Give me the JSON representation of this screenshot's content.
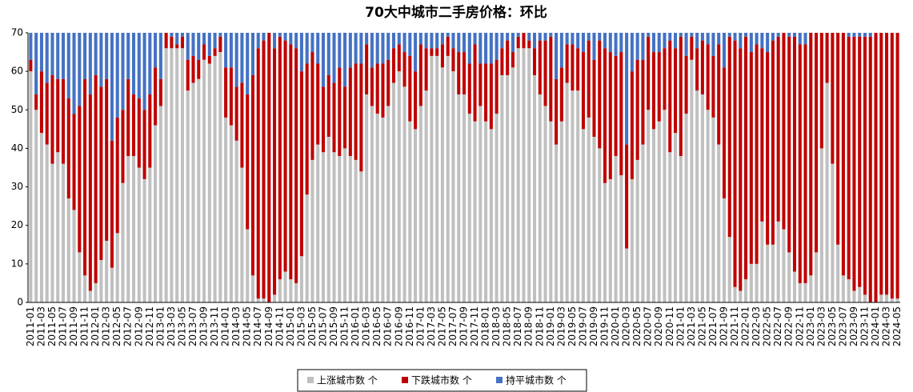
{
  "chart_data": {
    "type": "stacked_bar",
    "title": "70大中城市二手房价格：环比",
    "categories": [
      "2011-01",
      null,
      "2011-03",
      null,
      "2011-05",
      null,
      "2011-07",
      null,
      "2011-09",
      null,
      "2011-11",
      null,
      "2012-01",
      null,
      "2012-03",
      null,
      "2012-05",
      null,
      "2012-07",
      null,
      "2012-09",
      null,
      "2012-11",
      null,
      "2013-01",
      null,
      "2013-03",
      null,
      "2013-05",
      null,
      "2013-07",
      null,
      "2013-09",
      null,
      "2013-11",
      null,
      "2014-01",
      null,
      "2014-03",
      null,
      "2014-05",
      null,
      "2014-07",
      null,
      "2014-09",
      null,
      "2014-11",
      null,
      "2015-01",
      null,
      "2015-03",
      null,
      "2015-05",
      null,
      "2015-07",
      null,
      "2015-09",
      null,
      "2015-11",
      null,
      "2016-01",
      null,
      "2016-03",
      null,
      "2016-05",
      null,
      "2016-07",
      null,
      "2016-09",
      null,
      "2016-11",
      null,
      "2017-01",
      null,
      "2017-03",
      null,
      "2017-05",
      null,
      "2017-07",
      null,
      "2017-09",
      null,
      "2017-11",
      null,
      "2018-01",
      null,
      "2018-03",
      null,
      "2018-05",
      null,
      "2018-07",
      null,
      "2018-09",
      null,
      "2018-11",
      null,
      "2019-01",
      null,
      "2019-03",
      null,
      "2019-05",
      null,
      "2019-07",
      null,
      "2019-09",
      null,
      "2019-11",
      null,
      "2020-01",
      null,
      "2020-03",
      null,
      "2020-05",
      null,
      "2020-07",
      null,
      "2020-09",
      null,
      "2020-11",
      null,
      "2021-01",
      null,
      "2021-03",
      null,
      "2021-05",
      null,
      "2021-07",
      null,
      "2021-09",
      null,
      "2021-11",
      null,
      "2022-01",
      null,
      "2022-03",
      null,
      "2022-05",
      null,
      "2022-07",
      null,
      "2022-09",
      null,
      "2022-11",
      null,
      "2023-01",
      null,
      "2023-03",
      null,
      "2023-05",
      null,
      "2023-07",
      null,
      "2023-09",
      null,
      "2023-11",
      null,
      "2024-01",
      null,
      "2024-03",
      null,
      "2024-05"
    ],
    "series": [
      {
        "name": "上涨城市数 个",
        "color": "#c0c0c0",
        "values": [
          60,
          50,
          44,
          41,
          36,
          39,
          36,
          27,
          24,
          13,
          7,
          3,
          5,
          11,
          16,
          9,
          18,
          31,
          38,
          38,
          35,
          32,
          35,
          46,
          51,
          66,
          66,
          66,
          66,
          55,
          57,
          58,
          63,
          62,
          64,
          65,
          48,
          46,
          42,
          35,
          19,
          7,
          1,
          1,
          0,
          2,
          6,
          8,
          6,
          5,
          12,
          28,
          37,
          41,
          39,
          43,
          39,
          38,
          40,
          38,
          37,
          34,
          54,
          51,
          49,
          48,
          51,
          57,
          60,
          56,
          47,
          45,
          51,
          55,
          64,
          64,
          61,
          64,
          60,
          54,
          54,
          49,
          47,
          51,
          47,
          45,
          49,
          59,
          59,
          61,
          66,
          66,
          66,
          59,
          54,
          51,
          47,
          41,
          47,
          57,
          55,
          55,
          45,
          48,
          43,
          40,
          31,
          32,
          38,
          33,
          14,
          32,
          37,
          41,
          50,
          45,
          47,
          50,
          39,
          44,
          38,
          49,
          63,
          55,
          54,
          50,
          48,
          41,
          27,
          17,
          4,
          3,
          6,
          10,
          10,
          21,
          15,
          15,
          21,
          19,
          13,
          8,
          5,
          5,
          7,
          13,
          40,
          57,
          36,
          15,
          7,
          6,
          3,
          4,
          2,
          0,
          0,
          2,
          2,
          1,
          1
        ]
      },
      {
        "name": "下跌城市数 个",
        "color": "#c00000",
        "values": [
          3,
          4,
          16,
          16,
          23,
          19,
          22,
          26,
          25,
          38,
          51,
          51,
          54,
          45,
          42,
          33,
          30,
          19,
          20,
          16,
          18,
          18,
          19,
          15,
          7,
          4,
          3,
          1,
          3,
          8,
          7,
          5,
          4,
          2,
          2,
          4,
          13,
          15,
          14,
          22,
          35,
          52,
          65,
          67,
          70,
          64,
          63,
          60,
          61,
          61,
          48,
          34,
          28,
          21,
          17,
          16,
          18,
          23,
          16,
          23,
          25,
          28,
          13,
          10,
          13,
          14,
          12,
          9,
          7,
          9,
          17,
          15,
          16,
          11,
          2,
          2,
          6,
          5,
          6,
          11,
          11,
          13,
          20,
          11,
          15,
          17,
          14,
          7,
          9,
          4,
          3,
          4,
          2,
          7,
          14,
          17,
          22,
          17,
          14,
          10,
          12,
          11,
          20,
          20,
          20,
          28,
          35,
          33,
          26,
          32,
          27,
          28,
          26,
          22,
          19,
          20,
          18,
          16,
          29,
          22,
          31,
          15,
          6,
          11,
          14,
          17,
          16,
          26,
          34,
          52,
          64,
          63,
          63,
          55,
          57,
          45,
          50,
          53,
          48,
          51,
          56,
          61,
          62,
          62,
          63,
          57,
          30,
          13,
          34,
          55,
          63,
          63,
          66,
          65,
          67,
          69,
          70,
          68,
          68,
          69,
          69
        ]
      },
      {
        "name": "持平城市数 个",
        "color": "#4472c4",
        "values": [
          7,
          16,
          10,
          13,
          11,
          12,
          12,
          17,
          21,
          19,
          12,
          16,
          11,
          14,
          12,
          28,
          22,
          20,
          12,
          16,
          17,
          20,
          16,
          9,
          12,
          0,
          1,
          3,
          1,
          7,
          6,
          7,
          3,
          6,
          4,
          1,
          9,
          9,
          14,
          13,
          16,
          11,
          4,
          2,
          0,
          4,
          1,
          2,
          3,
          4,
          10,
          8,
          5,
          8,
          14,
          11,
          13,
          9,
          14,
          9,
          8,
          8,
          3,
          9,
          8,
          8,
          7,
          4,
          3,
          5,
          6,
          10,
          3,
          4,
          4,
          4,
          3,
          1,
          4,
          5,
          5,
          8,
          3,
          8,
          8,
          8,
          7,
          4,
          2,
          5,
          1,
          0,
          2,
          4,
          2,
          2,
          1,
          12,
          9,
          3,
          3,
          4,
          5,
          2,
          7,
          2,
          4,
          5,
          6,
          5,
          29,
          10,
          7,
          7,
          1,
          5,
          5,
          4,
          2,
          4,
          1,
          6,
          1,
          4,
          2,
          3,
          6,
          3,
          9,
          1,
          2,
          4,
          1,
          5,
          3,
          4,
          5,
          2,
          1,
          0,
          1,
          1,
          3,
          3,
          0,
          0,
          0,
          0,
          0,
          0,
          0,
          1,
          1,
          1,
          1,
          1,
          0,
          0,
          0,
          0,
          0
        ]
      }
    ],
    "ylim": [
      0,
      70
    ],
    "yticks": [
      0,
      10,
      20,
      30,
      40,
      50,
      60,
      70
    ],
    "grid": false,
    "legend": "bottom"
  }
}
